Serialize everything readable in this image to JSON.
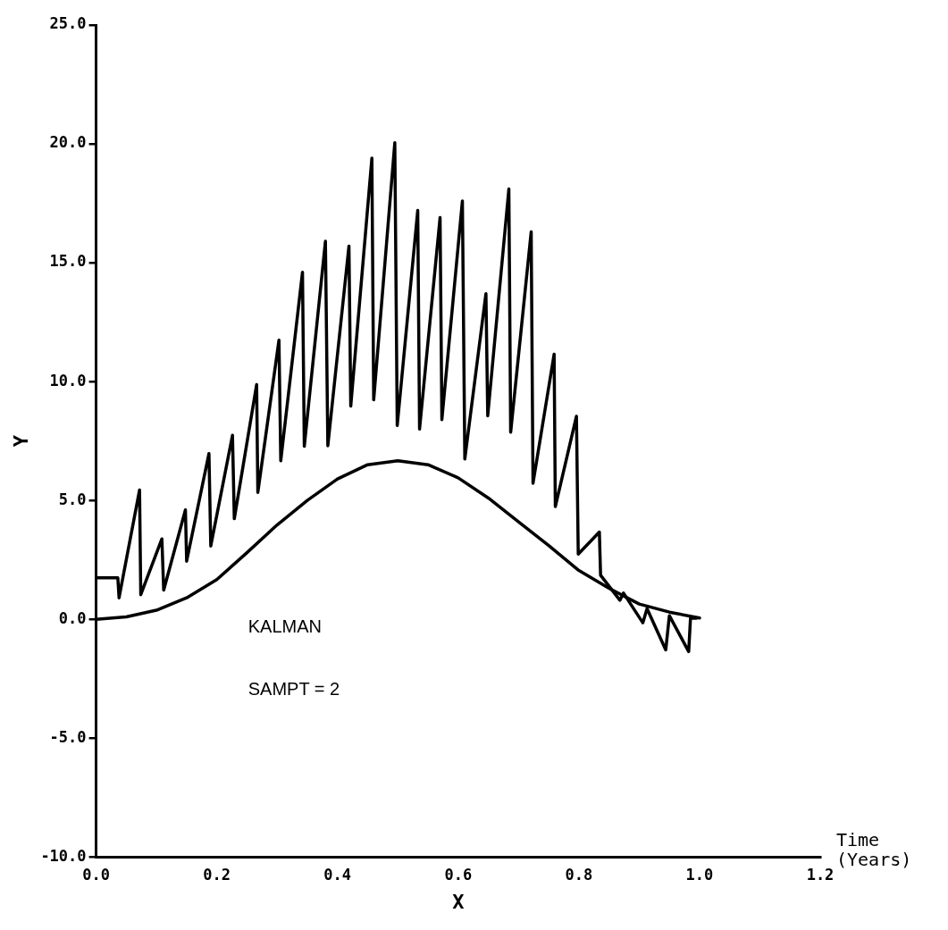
{
  "chart_data": {
    "type": "line",
    "xlabel": "X",
    "ylabel": "Y",
    "annotations": [
      "KALMAN",
      "SAMPT = 2",
      "Time\n(Years)"
    ],
    "xlim": [
      0,
      1.2
    ],
    "ylim": [
      -10,
      25
    ],
    "xticks": [
      {
        "value": 0,
        "label": "0.0"
      },
      {
        "value": 0.2,
        "label": "0.2"
      },
      {
        "value": 0.4,
        "label": "0.4"
      },
      {
        "value": 0.6,
        "label": "0.6"
      },
      {
        "value": 0.8,
        "label": "0.8"
      },
      {
        "value": 1,
        "label": "1.0"
      },
      {
        "value": 1.2,
        "label": "1.2"
      }
    ],
    "yticks": [
      {
        "value": -10,
        "label": "-10.0"
      },
      {
        "value": -5,
        "label": "-5.0"
      },
      {
        "value": 0,
        "label": "0.0"
      },
      {
        "value": 5,
        "label": "5.0"
      },
      {
        "value": 10,
        "label": "10.0"
      },
      {
        "value": 15,
        "label": "15.0"
      },
      {
        "value": 20,
        "label": "20.0"
      },
      {
        "value": 25,
        "label": "25.0"
      }
    ],
    "grid": false,
    "legend": false,
    "marker": "none",
    "line_style": "solid",
    "series": [
      {
        "color": "#000000",
        "x": [
          0,
          0.036,
          0.038,
          0.072,
          0.074,
          0.109,
          0.112,
          0.148,
          0.15,
          0.187,
          0.19,
          0.226,
          0.229,
          0.266,
          0.268,
          0.303,
          0.306,
          0.342,
          0.345,
          0.38,
          0.384,
          0.419,
          0.422,
          0.457,
          0.46,
          0.495,
          0.499,
          0.533,
          0.536,
          0.57,
          0.573,
          0.607,
          0.611,
          0.646,
          0.649,
          0.684,
          0.687,
          0.721,
          0.724,
          0.759,
          0.761,
          0.796,
          0.799,
          0.834,
          0.836,
          0.868,
          0.874,
          0.906,
          0.913,
          0.944,
          0.95,
          0.982,
          0.985,
          0.995
        ],
        "values": [
          1.74,
          1.74,
          0.9,
          5.44,
          1.03,
          3.38,
          1.23,
          4.6,
          2.44,
          6.97,
          3.08,
          7.74,
          4.23,
          9.87,
          5.33,
          11.74,
          6.67,
          14.6,
          7.28,
          15.9,
          7.3,
          15.7,
          8.97,
          19.4,
          9.23,
          20.05,
          8.15,
          17.2,
          8.0,
          16.9,
          8.4,
          17.6,
          6.74,
          13.7,
          8.56,
          18.1,
          7.87,
          16.3,
          5.72,
          11.15,
          4.74,
          8.54,
          2.74,
          3.67,
          1.85,
          0.8,
          1.1,
          -0.15,
          0.45,
          -1.29,
          0.15,
          -1.36,
          0.04,
          0.04
        ]
      },
      {
        "color": "#000000",
        "x": [
          0,
          0.05,
          0.1,
          0.15,
          0.2,
          0.25,
          0.3,
          0.35,
          0.4,
          0.45,
          0.5,
          0.55,
          0.6,
          0.65,
          0.7,
          0.75,
          0.8,
          0.85,
          0.9,
          0.95,
          1.0
        ],
        "values": [
          0,
          0.1,
          0.38,
          0.9,
          1.67,
          2.8,
          3.97,
          5.0,
          5.9,
          6.5,
          6.67,
          6.5,
          5.95,
          5.1,
          4.1,
          3.1,
          2.05,
          1.3,
          0.64,
          0.3,
          0.05
        ]
      }
    ]
  }
}
